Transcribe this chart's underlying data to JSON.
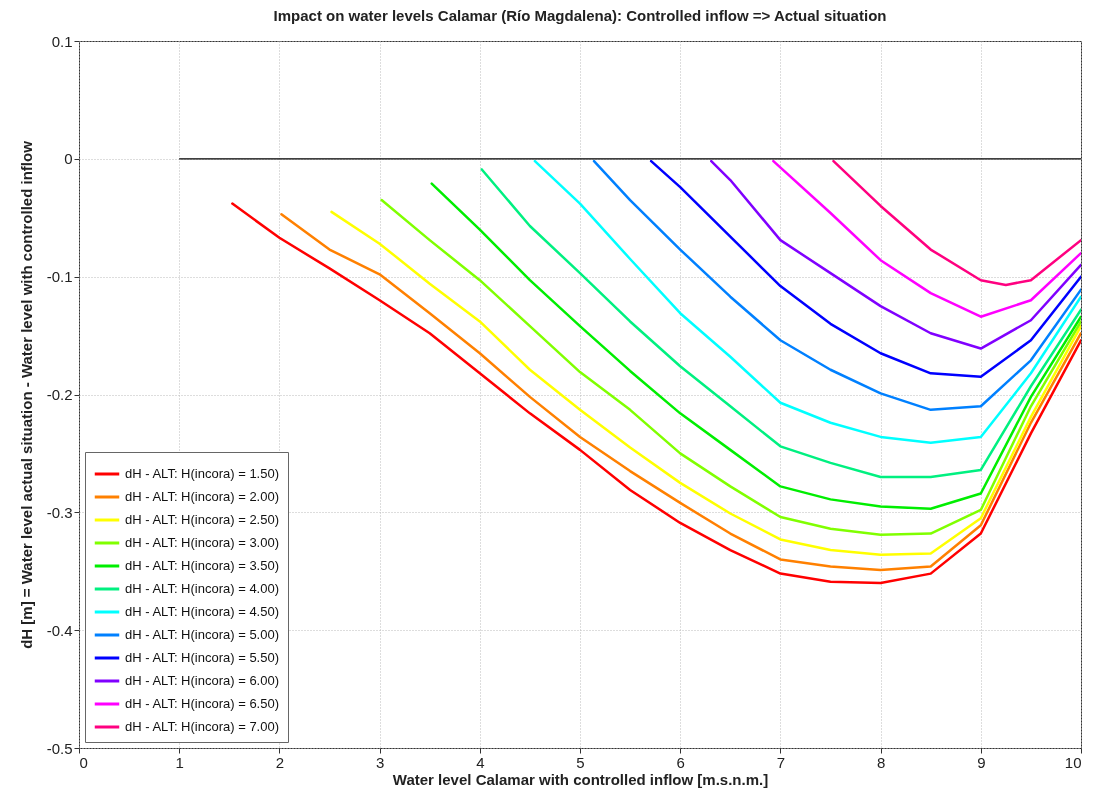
{
  "chart_data": {
    "type": "line",
    "title": "Impact on water levels Calamar (Río Magdalena): Controlled inflow => Actual situation",
    "xlabel": "Water level Calamar with controlled inflow [m.s.n.m.]",
    "ylabel": "dH [m] = Water level actual situation - Water level with controlled inflow",
    "xlim": [
      0,
      10
    ],
    "xticks": [
      0,
      1,
      2,
      3,
      4,
      5,
      6,
      7,
      8,
      9,
      10
    ],
    "ylim": [
      -0.5,
      0.1
    ],
    "yticks": [
      -0.5,
      -0.4,
      -0.3,
      -0.2,
      -0.1,
      0,
      0.1
    ],
    "grid": true,
    "legend": "bottom left",
    "line_style": "solid",
    "series": [
      {
        "name": "dH - ALT: H(incora) = 1.50)",
        "color": "#ff0000",
        "x": [
          1.53,
          2,
          2.5,
          3,
          3.5,
          4,
          4.5,
          5,
          5.5,
          6,
          6.5,
          7,
          7.5,
          8,
          8.5,
          9,
          9.5,
          10
        ],
        "values": [
          -0.038,
          -0.067,
          -0.093,
          -0.12,
          -0.148,
          -0.182,
          -0.216,
          -0.247,
          -0.281,
          -0.309,
          -0.332,
          -0.352,
          -0.359,
          -0.36,
          -0.352,
          -0.318,
          -0.233,
          -0.154
        ]
      },
      {
        "name": "dH - ALT: H(incora) = 2.00)",
        "color": "#ff8000",
        "x": [
          2.02,
          2.5,
          3,
          3.5,
          4,
          4.5,
          5,
          5.5,
          6,
          6.5,
          7,
          7.5,
          8,
          8.5,
          9,
          9.5,
          10
        ],
        "values": [
          -0.047,
          -0.077,
          -0.098,
          -0.131,
          -0.165,
          -0.202,
          -0.236,
          -0.265,
          -0.292,
          -0.318,
          -0.34,
          -0.346,
          -0.349,
          -0.346,
          -0.311,
          -0.224,
          -0.148
        ]
      },
      {
        "name": "dH - ALT: H(incora) = 2.50)",
        "color": "#ffff00",
        "x": [
          2.52,
          3,
          3.5,
          4,
          4.5,
          5,
          5.5,
          6,
          6.5,
          7,
          7.5,
          8,
          8.5,
          9,
          9.5,
          10
        ],
        "values": [
          -0.045,
          -0.072,
          -0.106,
          -0.138,
          -0.179,
          -0.213,
          -0.245,
          -0.275,
          -0.301,
          -0.323,
          -0.332,
          -0.336,
          -0.335,
          -0.305,
          -0.219,
          -0.142
        ]
      },
      {
        "name": "dH - ALT: H(incora) = 3.00)",
        "color": "#80ff00",
        "x": [
          3.02,
          3.5,
          4,
          4.5,
          5,
          5.5,
          6,
          6.5,
          7,
          7.5,
          8,
          8.5,
          9,
          9.5,
          10
        ],
        "values": [
          -0.035,
          -0.069,
          -0.103,
          -0.142,
          -0.181,
          -0.213,
          -0.25,
          -0.278,
          -0.304,
          -0.314,
          -0.319,
          -0.318,
          -0.298,
          -0.21,
          -0.138
        ]
      },
      {
        "name": "dH - ALT: H(incora) = 3.50)",
        "color": "#00ee00",
        "x": [
          3.52,
          4,
          4.5,
          5,
          5.5,
          6,
          6.5,
          7,
          7.5,
          8,
          8.5,
          9,
          9.5,
          10
        ],
        "values": [
          -0.021,
          -0.06,
          -0.103,
          -0.142,
          -0.18,
          -0.216,
          -0.247,
          -0.278,
          -0.289,
          -0.295,
          -0.297,
          -0.284,
          -0.202,
          -0.134
        ]
      },
      {
        "name": "dH - ALT: H(incora) = 4.00)",
        "color": "#00f080",
        "x": [
          4.02,
          4.5,
          5,
          5.5,
          6,
          6.5,
          7,
          7.5,
          8,
          8.5,
          9,
          9.5,
          10
        ],
        "values": [
          -0.009,
          -0.057,
          -0.097,
          -0.138,
          -0.176,
          -0.21,
          -0.244,
          -0.258,
          -0.27,
          -0.27,
          -0.264,
          -0.193,
          -0.128
        ]
      },
      {
        "name": "dH - ALT: H(incora) = 4.50)",
        "color": "#00ffff",
        "x": [
          4.55,
          5,
          5.5,
          6,
          6.5,
          7,
          7.5,
          8,
          8.5,
          9,
          9.5,
          10
        ],
        "values": [
          -0.002,
          -0.038,
          -0.085,
          -0.131,
          -0.168,
          -0.207,
          -0.224,
          -0.236,
          -0.241,
          -0.236,
          -0.182,
          -0.117
        ]
      },
      {
        "name": "dH - ALT: H(incora) = 5.00)",
        "color": "#0080ff",
        "x": [
          5.14,
          5.5,
          6,
          6.5,
          7,
          7.5,
          8,
          8.5,
          9,
          9.5,
          10
        ],
        "values": [
          -0.002,
          -0.035,
          -0.077,
          -0.117,
          -0.154,
          -0.179,
          -0.199,
          -0.213,
          -0.21,
          -0.171,
          -0.111
        ]
      },
      {
        "name": "dH - ALT: H(incora) = 5.50)",
        "color": "#0000ff",
        "x": [
          5.71,
          6,
          6.5,
          7,
          7.5,
          8,
          8.5,
          9,
          9.5,
          10
        ],
        "values": [
          -0.002,
          -0.024,
          -0.066,
          -0.108,
          -0.14,
          -0.165,
          -0.182,
          -0.185,
          -0.154,
          -0.1
        ]
      },
      {
        "name": "dH - ALT: H(incora) = 6.00)",
        "color": "#8000ff",
        "x": [
          6.31,
          6.5,
          7,
          7.5,
          8,
          8.5,
          9,
          9.5,
          10
        ],
        "values": [
          -0.002,
          -0.018,
          -0.069,
          -0.097,
          -0.125,
          -0.148,
          -0.161,
          -0.137,
          -0.09
        ]
      },
      {
        "name": "dH - ALT: H(incora) = 6.50)",
        "color": "#ff00ff",
        "x": [
          6.93,
          7.5,
          8,
          8.5,
          9,
          9.5,
          10
        ],
        "values": [
          -0.002,
          -0.046,
          -0.086,
          -0.114,
          -0.134,
          -0.12,
          -0.08
        ]
      },
      {
        "name": "dH - ALT: H(incora) = 7.00)",
        "color": "#ff0080",
        "x": [
          7.53,
          8,
          8.5,
          9,
          9.25,
          9.5,
          10
        ],
        "values": [
          -0.002,
          -0.04,
          -0.077,
          -0.103,
          -0.107,
          -0.103,
          -0.069
        ]
      },
      {
        "color": "#000000",
        "x": [
          1,
          10
        ],
        "values": [
          0,
          0
        ]
      }
    ]
  }
}
